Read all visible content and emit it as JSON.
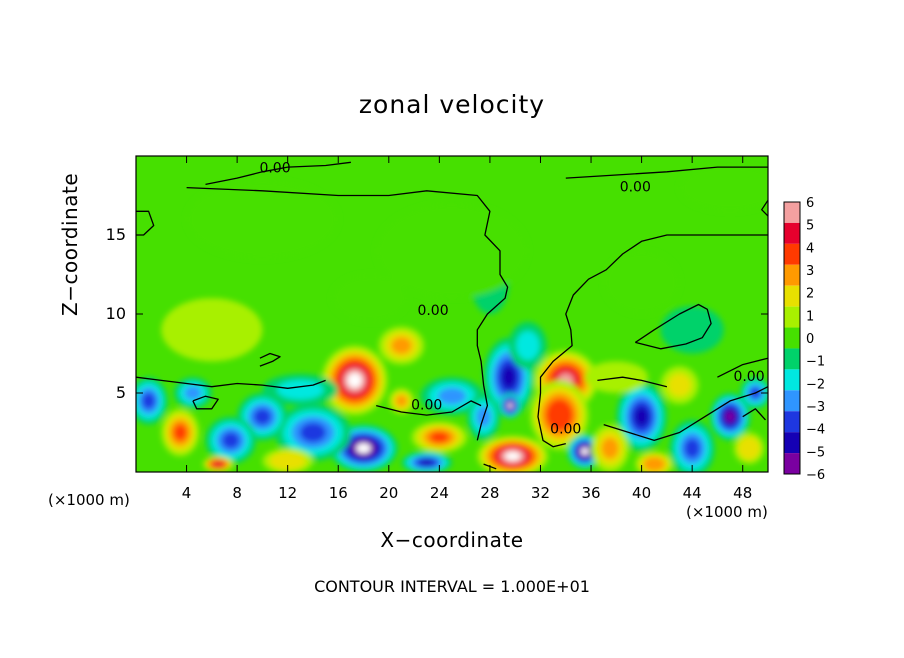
{
  "chart_data": {
    "type": "heatmap",
    "title": "zonal velocity",
    "xlabel": "X−coordinate",
    "ylabel": "Z−coordinate",
    "x_unit_left": "(×1000 m)",
    "x_unit_right": "(×1000 m)",
    "footnote": "CONTOUR INTERVAL = 1.000E+01",
    "xlim": [
      0,
      50
    ],
    "ylim": [
      0,
      20
    ],
    "x_ticks": [
      4,
      8,
      12,
      16,
      20,
      24,
      28,
      32,
      36,
      40,
      44,
      48
    ],
    "y_ticks": [
      5,
      10,
      15
    ],
    "colorbar": {
      "levels": [
        "6",
        "5",
        "4",
        "3",
        "2",
        "1",
        "0",
        "−1",
        "−2",
        "−3",
        "−4",
        "−5",
        "−6"
      ],
      "colors": [
        "#f4a0a0",
        "#e6002d",
        "#ff3a00",
        "#ff9a00",
        "#e8e000",
        "#a8f000",
        "#46e000",
        "#00d26a",
        "#00e8e0",
        "#2f95ff",
        "#1e37e0",
        "#1500b4",
        "#7a00a0"
      ]
    },
    "contour_labels": [
      {
        "text": "0.00",
        "x": 11,
        "y": 19.2
      },
      {
        "text": "0.00",
        "x": 39.5,
        "y": 18.0
      },
      {
        "text": "0.00",
        "x": 23.5,
        "y": 10.2
      },
      {
        "text": "0.00",
        "x": 23.0,
        "y": 4.2
      },
      {
        "text": "0.00",
        "x": 34.0,
        "y": 2.7
      },
      {
        "text": "0.00",
        "x": 48.5,
        "y": 6.0
      }
    ],
    "blobs": [
      {
        "x": 17.3,
        "y": 5.8,
        "rx": 2.6,
        "ry": 2.2,
        "v": 6.5
      },
      {
        "x": 21.0,
        "y": 8.0,
        "rx": 1.8,
        "ry": 1.2,
        "v": 2.8
      },
      {
        "x": 34.0,
        "y": 5.8,
        "rx": 2.5,
        "ry": 1.9,
        "v": 6.0
      },
      {
        "x": 33.5,
        "y": 3.6,
        "rx": 2.3,
        "ry": 2.2,
        "v": 4.2
      },
      {
        "x": 18.0,
        "y": 1.5,
        "rx": 2.7,
        "ry": 1.5,
        "v": -6.5
      },
      {
        "x": 29.5,
        "y": 6.0,
        "rx": 2.0,
        "ry": 2.5,
        "v": -4.5
      },
      {
        "x": 29.6,
        "y": 4.2,
        "rx": 0.9,
        "ry": 0.8,
        "v": -7.0
      },
      {
        "x": 29.8,
        "y": 1.0,
        "rx": 2.8,
        "ry": 1.3,
        "v": 6.5
      },
      {
        "x": 35.5,
        "y": 1.3,
        "rx": 1.4,
        "ry": 1.1,
        "v": -6.5
      },
      {
        "x": 40.0,
        "y": 3.5,
        "rx": 2.0,
        "ry": 2.2,
        "v": -4.5
      },
      {
        "x": 24.0,
        "y": 2.2,
        "rx": 2.2,
        "ry": 1.0,
        "v": 4.0
      },
      {
        "x": 14.0,
        "y": 2.5,
        "rx": 3.0,
        "ry": 1.8,
        "v": -4.0
      },
      {
        "x": 10.0,
        "y": 3.5,
        "rx": 2.0,
        "ry": 1.5,
        "v": -3.5
      },
      {
        "x": 7.5,
        "y": 2.0,
        "rx": 2.0,
        "ry": 1.5,
        "v": -4.0
      },
      {
        "x": 6.5,
        "y": 0.5,
        "rx": 1.2,
        "ry": 0.5,
        "v": 5.5
      },
      {
        "x": 3.5,
        "y": 2.5,
        "rx": 1.5,
        "ry": 1.5,
        "v": 4.0
      },
      {
        "x": 1.0,
        "y": 4.5,
        "rx": 1.5,
        "ry": 1.5,
        "v": -3.5
      },
      {
        "x": 4.5,
        "y": 5.0,
        "rx": 1.5,
        "ry": 1.0,
        "v": -2.5
      },
      {
        "x": 13.0,
        "y": 5.2,
        "rx": 3.0,
        "ry": 1.0,
        "v": -2.0
      },
      {
        "x": 25.0,
        "y": 4.8,
        "rx": 2.5,
        "ry": 1.2,
        "v": -2.5
      },
      {
        "x": 21.0,
        "y": 4.5,
        "rx": 1.0,
        "ry": 0.8,
        "v": 3.0
      },
      {
        "x": 23.0,
        "y": 0.6,
        "rx": 2.0,
        "ry": 0.7,
        "v": -4.5
      },
      {
        "x": 12.0,
        "y": 0.7,
        "rx": 2.0,
        "ry": 0.8,
        "v": 2.5
      },
      {
        "x": 37.5,
        "y": 1.5,
        "rx": 1.5,
        "ry": 1.5,
        "v": 3.0
      },
      {
        "x": 38.0,
        "y": 6.0,
        "rx": 2.5,
        "ry": 1.0,
        "v": 1.5
      },
      {
        "x": 41.0,
        "y": 0.5,
        "rx": 1.5,
        "ry": 0.8,
        "v": 3.5
      },
      {
        "x": 43.0,
        "y": 5.5,
        "rx": 1.5,
        "ry": 1.2,
        "v": 2.0
      },
      {
        "x": 44.0,
        "y": 1.5,
        "rx": 1.8,
        "ry": 1.8,
        "v": -4.0
      },
      {
        "x": 47.0,
        "y": 3.5,
        "rx": 1.6,
        "ry": 1.5,
        "v": -5.5
      },
      {
        "x": 48.5,
        "y": 1.5,
        "rx": 1.2,
        "ry": 1.0,
        "v": 2.5
      },
      {
        "x": 49.0,
        "y": 5.0,
        "rx": 1.2,
        "ry": 1.0,
        "v": -3.5
      },
      {
        "x": 27.5,
        "y": 3.5,
        "rx": 1.3,
        "ry": 1.5,
        "v": -3.0
      },
      {
        "x": 18.5,
        "y": 11.0,
        "rx": 3.0,
        "ry": 1.5,
        "v": 0.5
      },
      {
        "x": 6.0,
        "y": 9.0,
        "rx": 4.0,
        "ry": 2.0,
        "v": 0.6
      },
      {
        "x": 31.0,
        "y": 8.0,
        "rx": 1.5,
        "ry": 1.5,
        "v": -1.5
      },
      {
        "x": 28.0,
        "y": 12.0,
        "rx": 1.5,
        "ry": 2.0,
        "v": -0.5
      },
      {
        "x": 44.0,
        "y": 9.0,
        "rx": 2.5,
        "ry": 1.5,
        "v": -0.5
      },
      {
        "x": 40.0,
        "y": 12.0,
        "rx": 3.0,
        "ry": 2.0,
        "v": -0.3
      },
      {
        "x": 25.0,
        "y": 14.0,
        "rx": 6.0,
        "ry": 3.0,
        "v": 0.3
      },
      {
        "x": 10.0,
        "y": 16.0,
        "rx": 6.0,
        "ry": 2.5,
        "v": -0.3
      },
      {
        "x": 47.0,
        "y": 18.0,
        "rx": 4.0,
        "ry": 1.5,
        "v": 0.5
      }
    ],
    "contour_lines": [
      [
        [
          5.5,
          18.2
        ],
        [
          8,
          18.6
        ],
        [
          10,
          19.0
        ],
        [
          12,
          19.3
        ],
        [
          15,
          19.4
        ],
        [
          17,
          19.6
        ]
      ],
      [
        [
          4,
          18.0
        ],
        [
          10,
          17.8
        ],
        [
          16,
          17.5
        ],
        [
          20,
          17.5
        ],
        [
          23,
          17.8
        ],
        [
          27,
          17.5
        ],
        [
          28,
          16.5
        ],
        [
          27.6,
          15.0
        ],
        [
          28.8,
          14.0
        ],
        [
          28.8,
          12.5
        ],
        [
          29.4,
          11.7
        ],
        [
          29.2,
          11.0
        ],
        [
          28.5,
          10.5
        ],
        [
          27.8,
          10.0
        ],
        [
          27.0,
          9.0
        ],
        [
          27.0,
          8.0
        ],
        [
          27.3,
          7.0
        ],
        [
          27.5,
          5.5
        ],
        [
          27.8,
          4.2
        ],
        [
          27.3,
          3.0
        ],
        [
          27.0,
          2.0
        ]
      ],
      [
        [
          0,
          16.5
        ],
        [
          1,
          16.5
        ],
        [
          1.4,
          15.6
        ],
        [
          0.6,
          15.0
        ],
        [
          0,
          15.0
        ]
      ],
      [
        [
          34,
          18.6
        ],
        [
          38,
          18.8
        ],
        [
          42,
          19.0
        ],
        [
          46,
          19.3
        ],
        [
          50,
          19.3
        ]
      ],
      [
        [
          50,
          17.2
        ],
        [
          49.5,
          16.6
        ],
        [
          50,
          16.2
        ]
      ],
      [
        [
          50,
          15.0
        ],
        [
          46,
          15.0
        ],
        [
          42,
          15.0
        ],
        [
          40,
          14.6
        ],
        [
          38.5,
          13.8
        ],
        [
          37.2,
          12.8
        ],
        [
          35.8,
          12.2
        ],
        [
          34.6,
          11.2
        ],
        [
          34.0,
          10.0
        ],
        [
          34.4,
          9.0
        ],
        [
          34.5,
          8.0
        ],
        [
          33.0,
          7.0
        ],
        [
          32.0,
          6.0
        ],
        [
          32.0,
          5.0
        ],
        [
          31.8,
          3.5
        ],
        [
          32.2,
          2.0
        ],
        [
          33.0,
          1.6
        ],
        [
          34.0,
          1.8
        ]
      ],
      [
        [
          39.5,
          8.2
        ],
        [
          41,
          9.0
        ],
        [
          43,
          10.0
        ],
        [
          44.5,
          10.6
        ],
        [
          45.2,
          10.3
        ],
        [
          45.5,
          9.4
        ],
        [
          44.8,
          8.5
        ],
        [
          43.5,
          8.1
        ],
        [
          41.5,
          7.8
        ],
        [
          39.5,
          8.2
        ]
      ],
      [
        [
          36.5,
          5.8
        ],
        [
          38.5,
          6.0
        ],
        [
          40,
          5.8
        ],
        [
          42,
          5.4
        ]
      ],
      [
        [
          46,
          6.0
        ],
        [
          48,
          6.8
        ],
        [
          50,
          7.2
        ]
      ],
      [
        [
          0,
          6.0
        ],
        [
          2,
          5.8
        ],
        [
          4,
          5.6
        ],
        [
          6,
          5.4
        ],
        [
          8,
          5.6
        ],
        [
          10,
          5.5
        ],
        [
          12,
          5.3
        ],
        [
          14,
          5.5
        ],
        [
          15,
          5.8
        ]
      ],
      [
        [
          19,
          4.2
        ],
        [
          21,
          3.8
        ],
        [
          23,
          3.6
        ],
        [
          25,
          3.8
        ],
        [
          26.5,
          4.5
        ],
        [
          27.3,
          4.2
        ]
      ],
      [
        [
          37,
          3.0
        ],
        [
          39,
          2.5
        ],
        [
          41,
          2.0
        ],
        [
          43,
          2.5
        ],
        [
          45,
          3.5
        ],
        [
          47,
          4.5
        ],
        [
          49,
          5.0
        ],
        [
          50,
          5.4
        ]
      ],
      [
        [
          4.5,
          4.5
        ],
        [
          5.5,
          4.8
        ],
        [
          6.5,
          4.6
        ],
        [
          6.0,
          4.0
        ],
        [
          4.8,
          4.0
        ],
        [
          4.5,
          4.5
        ]
      ],
      [
        [
          9.8,
          6.7
        ],
        [
          10.8,
          7.0
        ],
        [
          11.4,
          7.3
        ],
        [
          10.6,
          7.5
        ],
        [
          9.8,
          7.2
        ]
      ],
      [
        [
          27.5,
          0.5
        ],
        [
          28.5,
          0.2
        ]
      ],
      [
        [
          48,
          3.5
        ],
        [
          49,
          4.0
        ],
        [
          49.8,
          3.3
        ]
      ]
    ]
  }
}
